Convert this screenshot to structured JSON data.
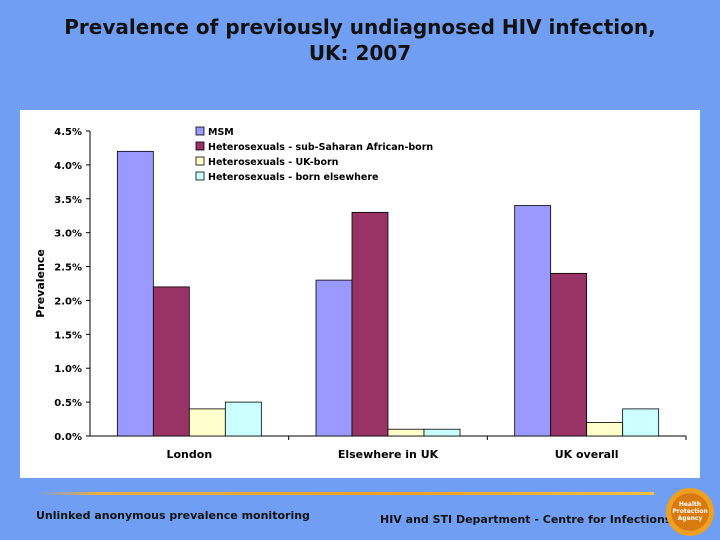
{
  "slide": {
    "title_line1": "Prevalence of previously undiagnosed HIV infection,",
    "title_line2": "UK: 2007",
    "footer_left": "Unlinked anonymous prevalence monitoring",
    "footer_right": "HIV and STI Department - Centre for Infections",
    "logo_text": [
      "Health",
      "Protection",
      "Agency"
    ],
    "colors": {
      "background": "#6f9ef2",
      "plot_bg": "#ffffff"
    }
  },
  "chart_data": {
    "type": "bar",
    "title": "Prevalence of previously undiagnosed HIV infection, UK: 2007",
    "xlabel": "",
    "ylabel": "Prevalence",
    "ylim": [
      0,
      4.5
    ],
    "ytick_step": 0.5,
    "ytick_labels": [
      "0.0%",
      "0.5%",
      "1.0%",
      "1.5%",
      "2.0%",
      "2.5%",
      "3.0%",
      "3.5%",
      "4.0%",
      "4.5%"
    ],
    "grid": false,
    "legend_position": "top-left",
    "categories": [
      "London",
      "Elsewhere in UK",
      "UK overall"
    ],
    "series": [
      {
        "name": "MSM",
        "color": "#9999ff",
        "values": [
          4.2,
          2.3,
          3.4
        ]
      },
      {
        "name": "Heterosexuals - sub-Saharan African-born",
        "color": "#993366",
        "values": [
          2.2,
          3.3,
          2.4
        ]
      },
      {
        "name": "Heterosexuals - UK-born",
        "color": "#ffffcc",
        "values": [
          0.4,
          0.1,
          0.2
        ]
      },
      {
        "name": "Heterosexuals - born elsewhere",
        "color": "#ccffff",
        "values": [
          0.5,
          0.1,
          0.4
        ]
      }
    ]
  }
}
